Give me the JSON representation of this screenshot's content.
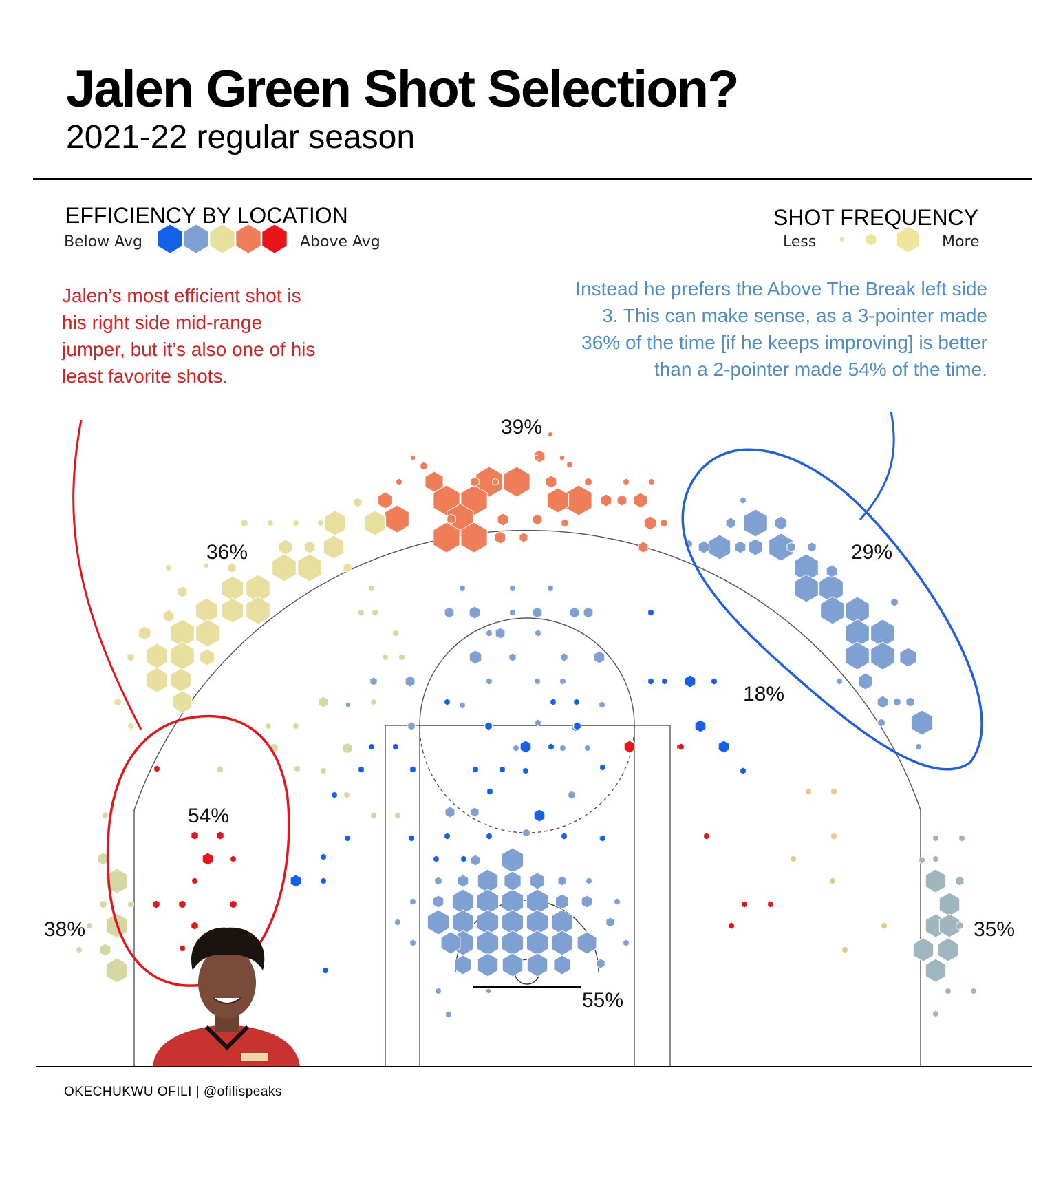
{
  "header": {
    "title": "Jalen Green Shot Selection?",
    "subtitle": "2021-22 regular season"
  },
  "legend": {
    "efficiency_title": "EFFICIENCY BY LOCATION",
    "efficiency_low": "Below Avg",
    "efficiency_high": "Above Avg",
    "efficiency_colors": [
      "#1560e6",
      "#7ea0d2",
      "#e7e09c",
      "#ef7d57",
      "#e8141b"
    ],
    "frequency_title": "SHOT FREQUENCY",
    "frequency_low": "Less",
    "frequency_high": "More",
    "frequency_color": "#eee59d"
  },
  "annotations": {
    "left": "Jalen’s most efficient shot is his right side mid-range jumper, but it’s also one of his least favorite shots.",
    "right": "Instead he prefers the Above The Break left side 3. This can make sense, as a 3-pointer made 36% of the time [if he keeps improving]  is better than a 2-pointer made 54% of the time.",
    "left_color": "#e41a1c",
    "right_color": "#4d8cc8"
  },
  "credit": "OKECHUKWU OFILI | @ofilispeaks",
  "chart_data": {
    "type": "hexbin",
    "zones": [
      {
        "label": "39%",
        "zone": "above the break center 3",
        "fg_pct": 39,
        "efficiency": "above-avg"
      },
      {
        "label": "36%",
        "zone": "above the break right 3",
        "fg_pct": 36,
        "efficiency": "avg"
      },
      {
        "label": "29%",
        "zone": "above the break left 3",
        "fg_pct": 29,
        "efficiency": "below-avg"
      },
      {
        "label": "18%",
        "zone": "left mid-range",
        "fg_pct": 18,
        "efficiency": "well-below-avg"
      },
      {
        "label": "54%",
        "zone": "right mid-range",
        "fg_pct": 54,
        "efficiency": "well-above-avg"
      },
      {
        "label": "38%",
        "zone": "right corner 3",
        "fg_pct": 38,
        "efficiency": "avg"
      },
      {
        "label": "35%",
        "zone": "left corner 3",
        "fg_pct": 35,
        "efficiency": "below-avg"
      },
      {
        "label": "55%",
        "zone": "restricted area",
        "fg_pct": 55,
        "efficiency": "below-avg"
      }
    ]
  }
}
